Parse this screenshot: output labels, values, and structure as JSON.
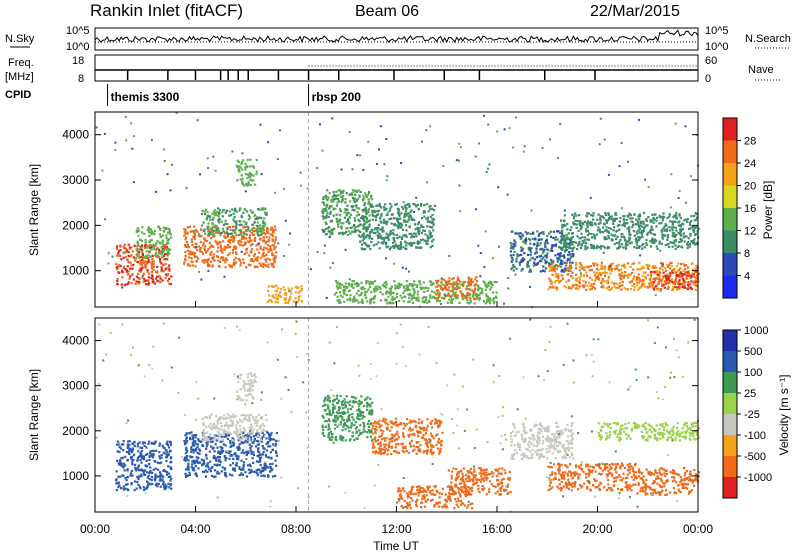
{
  "header": {
    "station": "Rankin Inlet (fitACF)",
    "beam": "Beam 06",
    "date": "22/Mar/2015"
  },
  "noise_panel": {
    "left_label": "N.Sky",
    "right_label": "N.Search",
    "left_ticks": [
      "10^5",
      "10^0"
    ],
    "right_ticks": [
      "10^5",
      "10^0"
    ]
  },
  "freq_panel": {
    "left_label_1": "Freq.",
    "left_label_2": "[MHz]",
    "right_label": "Nave",
    "left_ticks": [
      "18",
      "8"
    ],
    "right_ticks": [
      "60",
      "0"
    ]
  },
  "cpid": {
    "label": "CPID",
    "modes": [
      {
        "name": "themis 3300",
        "start_hour": 0.5
      },
      {
        "name": "rbsp 200",
        "start_hour": 8.5
      }
    ]
  },
  "colors": {
    "power": [
      "#1a2cf0",
      "#2a4bb8",
      "#3c8c66",
      "#5fae4c",
      "#d8d820",
      "#f5a21a",
      "#f06a1a",
      "#e02020"
    ],
    "velocity": [
      "#e02020",
      "#f06a1a",
      "#f5a21a",
      "#c8c8c0",
      "#9bd24a",
      "#3c9a54",
      "#2a5ab0",
      "#2030a8"
    ]
  },
  "chart_data": [
    {
      "type": "heatmap",
      "parameter": "Power",
      "ylabel": "Slant Range [km]",
      "yticks": [
        "1000",
        "2000",
        "3000",
        "4000"
      ],
      "ylim_km": [
        200,
        4500
      ],
      "xlim_hours": [
        0,
        24
      ],
      "colorbar_label": "Power [dB]",
      "colorbar_ticks": [
        "4",
        "8",
        "12",
        "16",
        "20",
        "24",
        "28"
      ],
      "colorbar_range_db": [
        0,
        32
      ],
      "patches": [
        {
          "t0": 0.8,
          "t1": 3.0,
          "r0": 700,
          "r1": 1600,
          "v": 28
        },
        {
          "t0": 1.6,
          "t1": 3.0,
          "r0": 1300,
          "r1": 2000,
          "v": 14
        },
        {
          "t0": 3.5,
          "t1": 7.2,
          "r0": 1100,
          "r1": 2000,
          "v": 26
        },
        {
          "t0": 4.2,
          "t1": 6.8,
          "r0": 1800,
          "r1": 2400,
          "v": 12
        },
        {
          "t0": 5.6,
          "t1": 6.4,
          "r0": 2900,
          "r1": 3500,
          "v": 14
        },
        {
          "t0": 6.8,
          "t1": 8.2,
          "r0": 300,
          "r1": 700,
          "v": 22
        },
        {
          "t0": 9.0,
          "t1": 11.0,
          "r0": 1800,
          "r1": 2800,
          "v": 12
        },
        {
          "t0": 10.5,
          "t1": 13.5,
          "r0": 1500,
          "r1": 2500,
          "v": 10
        },
        {
          "t0": 9.5,
          "t1": 16.0,
          "r0": 300,
          "r1": 800,
          "v": 14
        },
        {
          "t0": 13.5,
          "t1": 15.2,
          "r0": 400,
          "r1": 900,
          "v": 26
        },
        {
          "t0": 16.5,
          "t1": 19.0,
          "r0": 1000,
          "r1": 1900,
          "v": 8
        },
        {
          "t0": 18.0,
          "t1": 24.0,
          "r0": 600,
          "r1": 1200,
          "v": 24
        },
        {
          "t0": 18.5,
          "t1": 24.0,
          "r0": 1500,
          "r1": 2300,
          "v": 10
        },
        {
          "t0": 22.0,
          "t1": 24.0,
          "r0": 600,
          "r1": 1000,
          "v": 28
        }
      ]
    },
    {
      "type": "heatmap",
      "parameter": "Velocity",
      "ylabel": "Slant Range [km]",
      "yticks": [
        "1000",
        "2000",
        "3000",
        "4000"
      ],
      "ylim_km": [
        200,
        4500
      ],
      "xlim_hours": [
        0,
        24
      ],
      "xticks": [
        "00:00",
        "04:00",
        "08:00",
        "12:00",
        "16:00",
        "20:00",
        "00:00"
      ],
      "xlabel": "Time UT",
      "colorbar_label": "Velocity [m s⁻¹]",
      "colorbar_ticks": [
        "-1000",
        "-500",
        "-100",
        "-25",
        "25",
        "100",
        "500",
        "1000"
      ],
      "patches": [
        {
          "t0": 0.8,
          "t1": 3.0,
          "r0": 700,
          "r1": 1800,
          "v": 600
        },
        {
          "t0": 3.5,
          "t1": 7.2,
          "r0": 1000,
          "r1": 2000,
          "v": 700
        },
        {
          "t0": 4.2,
          "t1": 6.8,
          "r0": 1800,
          "r1": 2400,
          "v": 0
        },
        {
          "t0": 5.6,
          "t1": 6.4,
          "r0": 2700,
          "r1": 3300,
          "v": 0
        },
        {
          "t0": 9.0,
          "t1": 11.0,
          "r0": 1800,
          "r1": 2800,
          "v": 300
        },
        {
          "t0": 11.0,
          "t1": 13.8,
          "r0": 1500,
          "r1": 2300,
          "v": -300
        },
        {
          "t0": 12.0,
          "t1": 15.0,
          "r0": 300,
          "r1": 800,
          "v": -300
        },
        {
          "t0": 14.0,
          "t1": 16.5,
          "r0": 600,
          "r1": 1200,
          "v": -150
        },
        {
          "t0": 16.5,
          "t1": 19.0,
          "r0": 1400,
          "r1": 2200,
          "v": 0
        },
        {
          "t0": 18.0,
          "t1": 21.5,
          "r0": 700,
          "r1": 1300,
          "v": -400
        },
        {
          "t0": 20.0,
          "t1": 24.0,
          "r0": 1800,
          "r1": 2200,
          "v": 50
        },
        {
          "t0": 21.5,
          "t1": 24.0,
          "r0": 600,
          "r1": 1200,
          "v": -300
        }
      ]
    }
  ]
}
